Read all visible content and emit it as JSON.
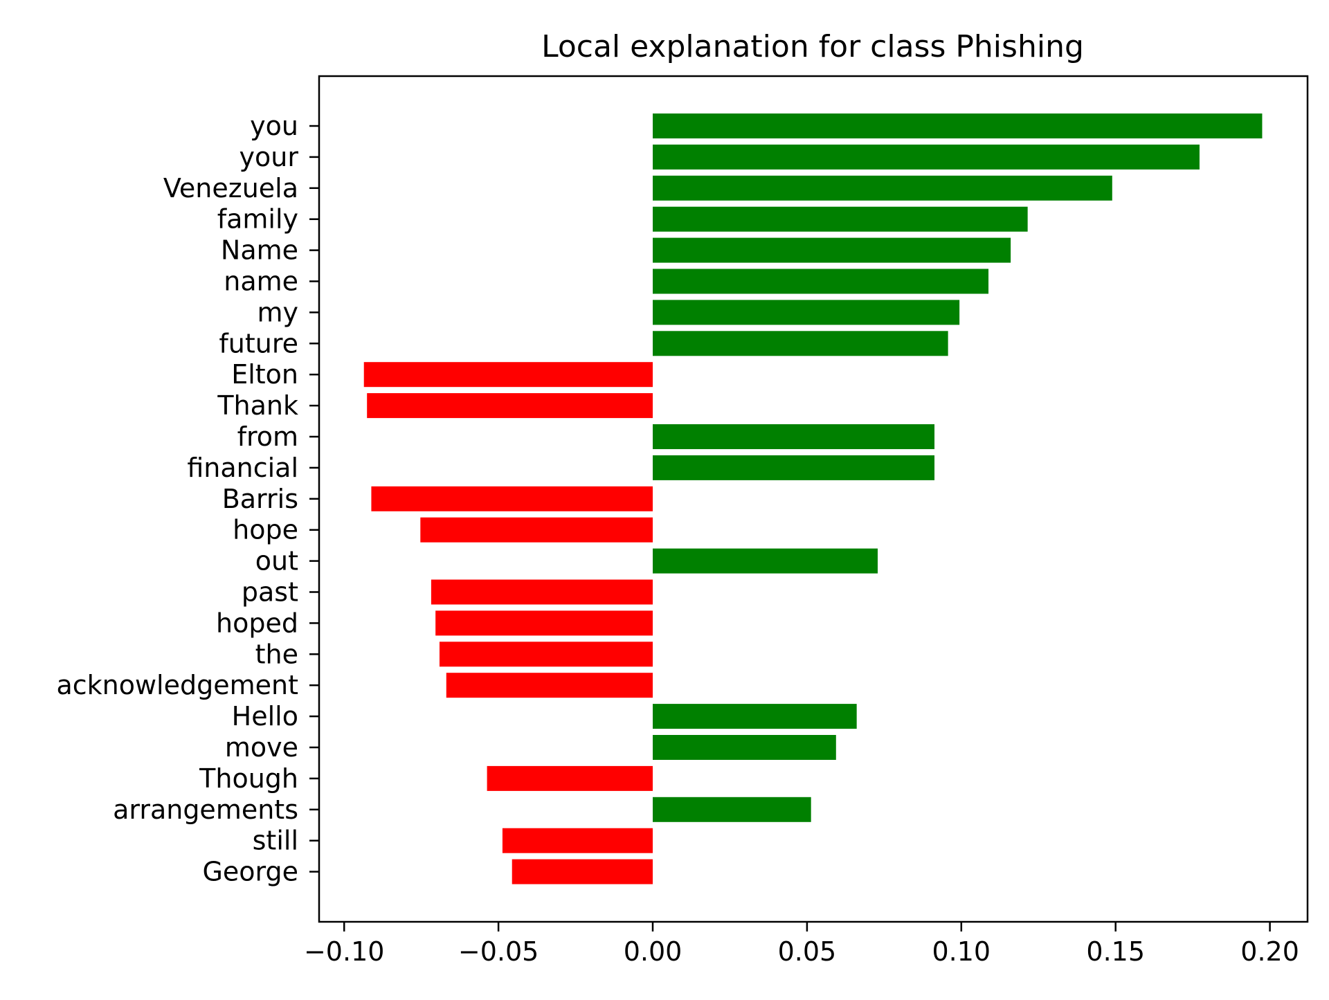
{
  "chart_data": {
    "type": "bar",
    "orientation": "horizontal",
    "title": "Local explanation for class Phishing",
    "xlabel": "",
    "ylabel": "",
    "xlim": [
      -0.108,
      0.212
    ],
    "xticks": [
      -0.1,
      -0.05,
      0.0,
      0.05,
      0.1,
      0.15,
      0.2
    ],
    "xtick_labels": [
      "−0.10",
      "−0.05",
      "0.00",
      "0.05",
      "0.10",
      "0.15",
      "0.20"
    ],
    "grid": false,
    "legend": "none",
    "colors": {
      "positive": "#008000",
      "negative": "#ff0000"
    },
    "categories": [
      "you",
      "your",
      "Venezuela",
      "family",
      "Name",
      "name",
      "my",
      "future",
      "Elton",
      "Thank",
      "from",
      "financial",
      "Barris",
      "hope",
      "out",
      "past",
      "hoped",
      "the",
      "acknowledgement",
      "Hello",
      "move",
      "Though",
      "arrangements",
      "still",
      "George"
    ],
    "values": [
      0.1975,
      0.1772,
      0.1489,
      0.1215,
      0.116,
      0.1088,
      0.0994,
      0.0957,
      -0.0936,
      -0.0926,
      0.0913,
      0.0913,
      -0.0912,
      -0.0753,
      0.0729,
      -0.0718,
      -0.0704,
      -0.0691,
      -0.0669,
      0.0661,
      0.0594,
      -0.0537,
      0.0513,
      -0.0487,
      -0.0456
    ]
  }
}
